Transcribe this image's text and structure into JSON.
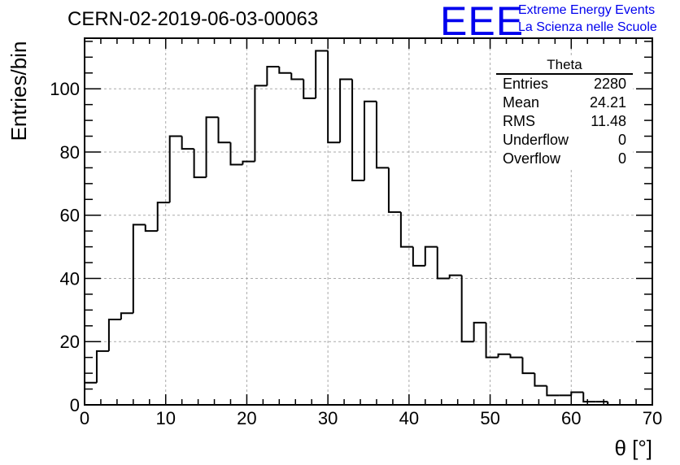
{
  "run_title": "CERN-02-2019-06-03-00063",
  "logo": {
    "mark": "EEE",
    "line1": "Extreme Energy Events",
    "line2": "La Scienza nelle Scuole",
    "color": "#0000ee"
  },
  "stats_box": {
    "title": "Theta",
    "rows": [
      {
        "label": "Entries",
        "value": "2280"
      },
      {
        "label": "Mean",
        "value": "24.21"
      },
      {
        "label": "RMS",
        "value": "11.48"
      },
      {
        "label": "Underflow",
        "value": "0"
      },
      {
        "label": "Overflow",
        "value": "0"
      }
    ]
  },
  "chart_data": {
    "type": "histogram",
    "title": "CERN-02-2019-06-03-00063",
    "xlabel": "θ [°]",
    "ylabel": "Entries/bin",
    "xlim": [
      0,
      70
    ],
    "ylim": [
      0,
      116
    ],
    "bin_width": 1.5,
    "x_ticks": [
      0,
      10,
      20,
      30,
      40,
      50,
      60,
      70
    ],
    "y_ticks": [
      0,
      20,
      40,
      60,
      80,
      100
    ],
    "grid": true,
    "line_color": "#000000",
    "values": [
      7,
      17,
      27,
      29,
      57,
      55,
      64,
      85,
      81,
      72,
      91,
      83,
      76,
      77,
      101,
      107,
      105,
      103,
      97,
      112,
      83,
      103,
      71,
      96,
      75,
      61,
      50,
      44,
      50,
      40,
      41,
      20,
      26,
      15,
      16,
      15,
      10,
      6,
      3,
      3,
      4,
      1,
      1,
      0,
      0,
      0,
      0
    ]
  }
}
